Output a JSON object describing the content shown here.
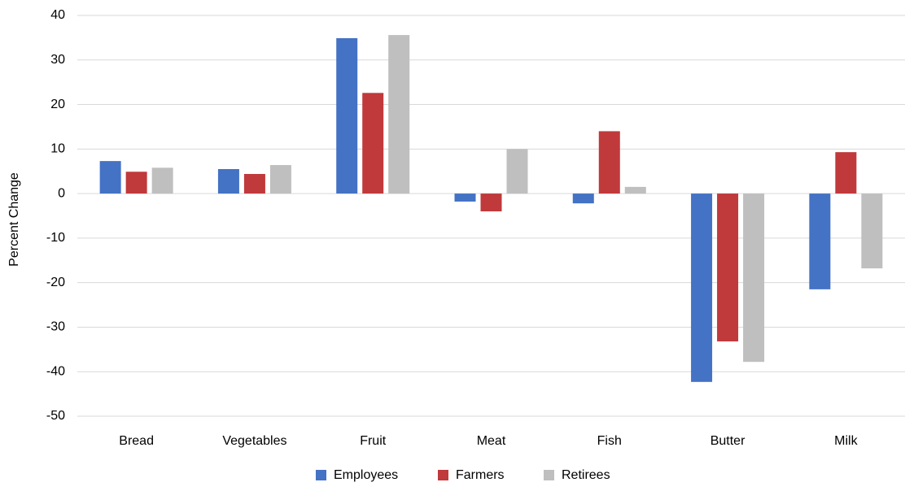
{
  "chart_data": {
    "type": "bar",
    "y_label": "Percent Change",
    "categories": [
      "Bread",
      "Vegetables",
      "Fruit",
      "Meat",
      "Fish",
      "Butter",
      "Milk"
    ],
    "series": [
      {
        "name": "Employees",
        "color": "#4472c4",
        "values": [
          7.3,
          5.5,
          34.9,
          -1.8,
          -2.2,
          -42.3,
          -21.5
        ]
      },
      {
        "name": "Farmers",
        "color": "#c0393b",
        "values": [
          4.9,
          4.4,
          22.6,
          -4,
          14,
          -33.2,
          9.3
        ]
      },
      {
        "name": "Retirees",
        "color": "#bfbfbf",
        "values": [
          5.8,
          6.4,
          35.6,
          10,
          1.5,
          -37.8,
          -16.8
        ]
      }
    ],
    "ylim": [
      -50,
      40
    ],
    "yticks": [
      -50,
      -40,
      -30,
      -20,
      -10,
      0,
      10,
      20,
      30,
      40
    ],
    "grid": true,
    "legend": "bottom"
  }
}
